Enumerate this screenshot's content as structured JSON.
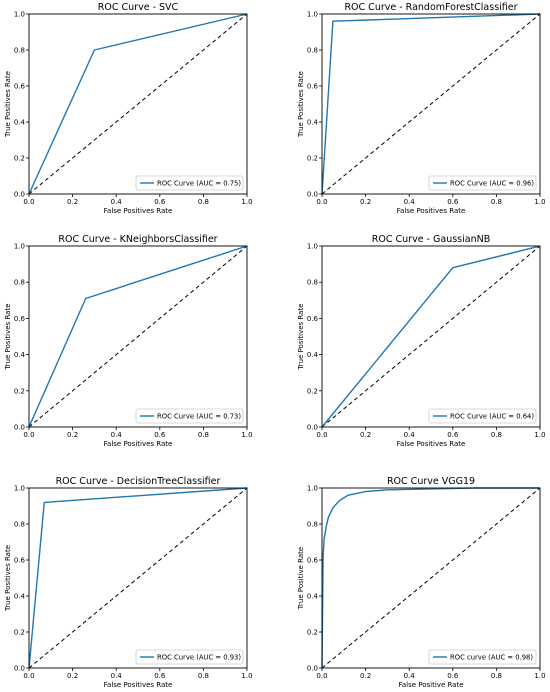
{
  "colors": {
    "roc_line": "#1f77b4",
    "diagonal": "#000000",
    "axes": "#000000"
  },
  "chart_data": [
    {
      "type": "line",
      "title": "ROC Curve - SVC",
      "xlabel": "False Positives Rate",
      "ylabel": "True Positives Rate",
      "xlim": [
        0,
        1
      ],
      "ylim": [
        0,
        1
      ],
      "xticks": [
        "0.0",
        "0.2",
        "0.4",
        "0.6",
        "0.8",
        "1.0"
      ],
      "yticks": [
        "0.0",
        "0.2",
        "0.4",
        "0.6",
        "0.8",
        "1.0"
      ],
      "grid": false,
      "legend": "lower-right",
      "series": [
        {
          "name": "ROC Curve (AUC = 0.75)",
          "x": [
            0,
            0.3,
            1
          ],
          "y": [
            0,
            0.8,
            1
          ]
        }
      ],
      "reference_line": {
        "style": "dashed",
        "x": [
          0,
          1
        ],
        "y": [
          0,
          1
        ]
      }
    },
    {
      "type": "line",
      "title": "ROC Curve - RandomForestClassifier",
      "xlabel": "False Positives Rate",
      "ylabel": "True Positives Rate",
      "xlim": [
        0,
        1
      ],
      "ylim": [
        0,
        1
      ],
      "xticks": [
        "0.0",
        "0.2",
        "0.4",
        "0.6",
        "0.8",
        "1.0"
      ],
      "yticks": [
        "0.0",
        "0.2",
        "0.4",
        "0.6",
        "0.8",
        "1.0"
      ],
      "grid": false,
      "legend": "lower-right",
      "series": [
        {
          "name": "ROC Curve (AUC = 0.96)",
          "x": [
            0,
            0.05,
            1
          ],
          "y": [
            0,
            0.96,
            1
          ]
        }
      ],
      "reference_line": {
        "style": "dashed",
        "x": [
          0,
          1
        ],
        "y": [
          0,
          1
        ]
      }
    },
    {
      "type": "line",
      "title": "ROC Curve - KNeighborsClassifier",
      "xlabel": "False Positives Rate",
      "ylabel": "True Positives Rate",
      "xlim": [
        0,
        1
      ],
      "ylim": [
        0,
        1
      ],
      "xticks": [
        "0.0",
        "0.2",
        "0.4",
        "0.6",
        "0.8",
        "1.0"
      ],
      "yticks": [
        "0.0",
        "0.2",
        "0.4",
        "0.6",
        "0.8",
        "1.0"
      ],
      "grid": false,
      "legend": "lower-right",
      "series": [
        {
          "name": "ROC Curve (AUC = 0.73)",
          "x": [
            0,
            0.26,
            1
          ],
          "y": [
            0,
            0.71,
            1
          ]
        }
      ],
      "reference_line": {
        "style": "dashed",
        "x": [
          0,
          1
        ],
        "y": [
          0,
          1
        ]
      }
    },
    {
      "type": "line",
      "title": "ROC Curve - GaussianNB",
      "xlabel": "False Positives Rate",
      "ylabel": "True Positives Rate",
      "xlim": [
        0,
        1
      ],
      "ylim": [
        0,
        1
      ],
      "xticks": [
        "0.0",
        "0.2",
        "0.4",
        "0.6",
        "0.8",
        "1.0"
      ],
      "yticks": [
        "0.0",
        "0.2",
        "0.4",
        "0.6",
        "0.8",
        "1.0"
      ],
      "grid": false,
      "legend": "lower-right",
      "series": [
        {
          "name": "ROC Curve (AUC = 0.64)",
          "x": [
            0,
            0.6,
            1
          ],
          "y": [
            0,
            0.88,
            1
          ]
        }
      ],
      "reference_line": {
        "style": "dashed",
        "x": [
          0,
          1
        ],
        "y": [
          0,
          1
        ]
      }
    },
    {
      "type": "line",
      "title": "ROC Curve - DecisionTreeClassifier",
      "xlabel": "False Positives Rate",
      "ylabel": "True Positives Rate",
      "xlim": [
        0,
        1
      ],
      "ylim": [
        0,
        1
      ],
      "xticks": [
        "0.0",
        "0.2",
        "0.4",
        "0.6",
        "0.8",
        "1.0"
      ],
      "yticks": [
        "0.0",
        "0.2",
        "0.4",
        "0.6",
        "0.8",
        "1.0"
      ],
      "grid": false,
      "legend": "lower-right",
      "series": [
        {
          "name": "ROC Curve (AUC = 0.93)",
          "x": [
            0,
            0.07,
            1
          ],
          "y": [
            0,
            0.92,
            1
          ]
        }
      ],
      "reference_line": {
        "style": "dashed",
        "x": [
          0,
          1
        ],
        "y": [
          0,
          1
        ]
      }
    },
    {
      "type": "line",
      "title": "ROC Curve VGG19",
      "xlabel": "False Positive Rate",
      "ylabel": "True Positive Rate",
      "xlim": [
        0,
        1
      ],
      "ylim": [
        0,
        1
      ],
      "xticks": [
        "0.0",
        "0.2",
        "0.4",
        "0.6",
        "0.8",
        "1.0"
      ],
      "yticks": [
        "0.0",
        "0.2",
        "0.4",
        "0.6",
        "0.8",
        "1.0"
      ],
      "grid": false,
      "legend": "lower-right",
      "series": [
        {
          "name": "ROC curve (AUC = 0.98)",
          "x": [
            0,
            0.005,
            0.01,
            0.02,
            0.03,
            0.05,
            0.08,
            0.12,
            0.2,
            0.3,
            0.5,
            0.7,
            1
          ],
          "y": [
            0,
            0.62,
            0.72,
            0.79,
            0.84,
            0.89,
            0.93,
            0.96,
            0.98,
            0.99,
            0.995,
            1,
            1
          ]
        }
      ],
      "reference_line": {
        "style": "dashed",
        "x": [
          0,
          1
        ],
        "y": [
          0,
          1
        ]
      }
    }
  ]
}
